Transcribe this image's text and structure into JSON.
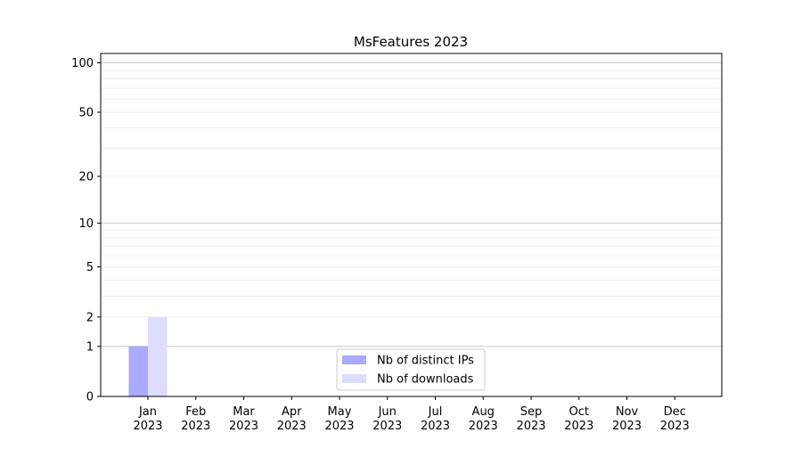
{
  "chart_data": {
    "type": "bar",
    "title": "MsFeatures 2023",
    "xlabel": "",
    "ylabel": "",
    "y_scale": "log(1+y)",
    "ylim": [
      0,
      114
    ],
    "grid": "horizontal, major and minor",
    "legend_position": "lower-center",
    "categories": [
      "Jan\n2023",
      "Feb\n2023",
      "Mar\n2023",
      "Apr\n2023",
      "May\n2023",
      "Jun\n2023",
      "Jul\n2023",
      "Aug\n2023",
      "Sep\n2023",
      "Oct\n2023",
      "Nov\n2023",
      "Dec\n2023"
    ],
    "y_ticks": [
      0,
      1,
      2,
      5,
      10,
      20,
      50,
      100
    ],
    "y_tick_labels": [
      "0",
      "1",
      "2",
      "5",
      "10",
      "20",
      "50",
      "100"
    ],
    "series": [
      {
        "name": "Nb of distinct IPs",
        "color": "#aaaaff",
        "values": [
          1,
          0,
          0,
          0,
          0,
          0,
          0,
          0,
          0,
          0,
          0,
          0
        ]
      },
      {
        "name": "Nb of downloads",
        "color": "#ddddff",
        "values": [
          2,
          0,
          0,
          0,
          0,
          0,
          0,
          0,
          0,
          0,
          0,
          0
        ]
      }
    ]
  }
}
